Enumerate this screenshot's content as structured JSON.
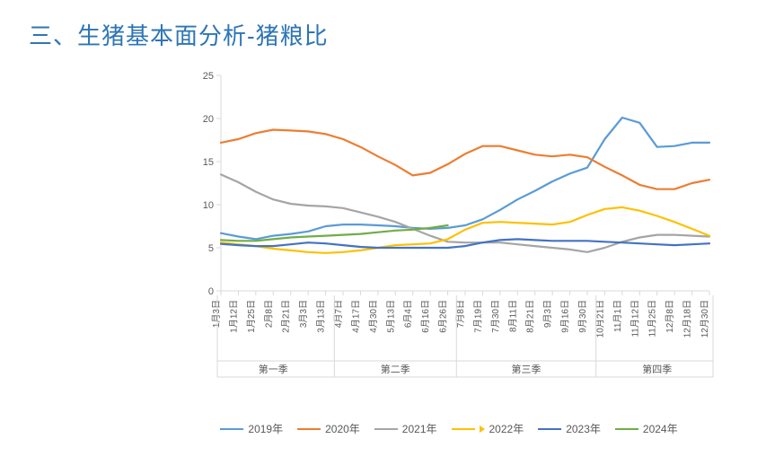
{
  "title": "三、生猪基本面分析-猪粮比",
  "title_color": "#2e75b6",
  "chart": {
    "type": "line",
    "background_color": "#ffffff",
    "ylim": [
      0,
      25
    ],
    "ytick_step": 5,
    "axis_color": "#d9d9d9",
    "tick_color": "#d9d9d9",
    "text_color": "#595959",
    "x_dates": [
      "1月3日",
      "1月12日",
      "1月25日",
      "2月8日",
      "2月21日",
      "3月3日",
      "3月13日",
      "4月7日",
      "4月17日",
      "4月30日",
      "5月13日",
      "6月4日",
      "6月16日",
      "6月26日",
      "7月8日",
      "7月19日",
      "7月30日",
      "8月11日",
      "8月21日",
      "9月3日",
      "9月16日",
      "9月30日",
      "10月21日",
      "11月1日",
      "11月12日",
      "11月25日",
      "12月8日",
      "12月18日",
      "12月30日"
    ],
    "quarters": [
      {
        "label": "第一季",
        "start": 0,
        "end": 7
      },
      {
        "label": "第二季",
        "start": 7,
        "end": 14
      },
      {
        "label": "第三季",
        "start": 14,
        "end": 22
      },
      {
        "label": "第四季",
        "start": 22,
        "end": 29
      }
    ],
    "series": [
      {
        "name": "2019年",
        "color": "#5b9bd5",
        "has_arrow": false,
        "values": [
          6.7,
          6.3,
          6.0,
          6.4,
          6.6,
          6.9,
          7.5,
          7.7,
          7.7,
          7.6,
          7.5,
          7.3,
          7.2,
          7.3,
          7.6,
          8.3,
          9.4,
          10.6,
          11.6,
          12.7,
          13.6,
          14.3,
          17.6,
          20.1,
          19.5,
          16.7,
          16.8,
          17.2,
          17.2
        ]
      },
      {
        "name": "2020年",
        "color": "#ed7d31",
        "has_arrow": false,
        "values": [
          17.2,
          17.6,
          18.3,
          18.7,
          18.6,
          18.5,
          18.2,
          17.6,
          16.7,
          15.6,
          14.6,
          13.4,
          13.7,
          14.7,
          15.9,
          16.8,
          16.8,
          16.3,
          15.8,
          15.6,
          15.8,
          15.5,
          14.4,
          13.4,
          12.3,
          11.8,
          11.8,
          12.5,
          12.9
        ]
      },
      {
        "name": "2021年",
        "color": "#a5a5a5",
        "has_arrow": false,
        "values": [
          13.5,
          12.6,
          11.5,
          10.6,
          10.1,
          9.9,
          9.8,
          9.6,
          9.1,
          8.6,
          8.0,
          7.2,
          6.4,
          5.7,
          5.6,
          5.6,
          5.6,
          5.4,
          5.2,
          5.0,
          4.8,
          4.5,
          5.0,
          5.7,
          6.2,
          6.5,
          6.5,
          6.4,
          6.3
        ]
      },
      {
        "name": "2022年",
        "color": "#ffc000",
        "has_arrow": true,
        "values": [
          5.6,
          5.4,
          5.2,
          4.9,
          4.7,
          4.5,
          4.4,
          4.5,
          4.7,
          5.0,
          5.3,
          5.4,
          5.5,
          6.0,
          7.1,
          7.9,
          8.0,
          7.9,
          7.8,
          7.7,
          8.0,
          8.8,
          9.5,
          9.7,
          9.3,
          8.7,
          8.0,
          7.2,
          6.4
        ]
      },
      {
        "name": "2023年",
        "color": "#4472c4",
        "has_arrow": false,
        "values": [
          5.45,
          5.3,
          5.2,
          5.2,
          5.4,
          5.6,
          5.5,
          5.3,
          5.1,
          5.0,
          5.0,
          5.0,
          5.0,
          5.0,
          5.2,
          5.6,
          5.9,
          6.0,
          5.9,
          5.8,
          5.8,
          5.8,
          5.7,
          5.6,
          5.5,
          5.4,
          5.3,
          5.4,
          5.5
        ]
      },
      {
        "name": "2024年",
        "color": "#70ad47",
        "has_arrow": false,
        "values": [
          5.9,
          5.8,
          5.8,
          6.0,
          6.2,
          6.3,
          6.4,
          6.5,
          6.6,
          6.8,
          7.0,
          7.1,
          7.3,
          7.6
        ]
      }
    ]
  }
}
